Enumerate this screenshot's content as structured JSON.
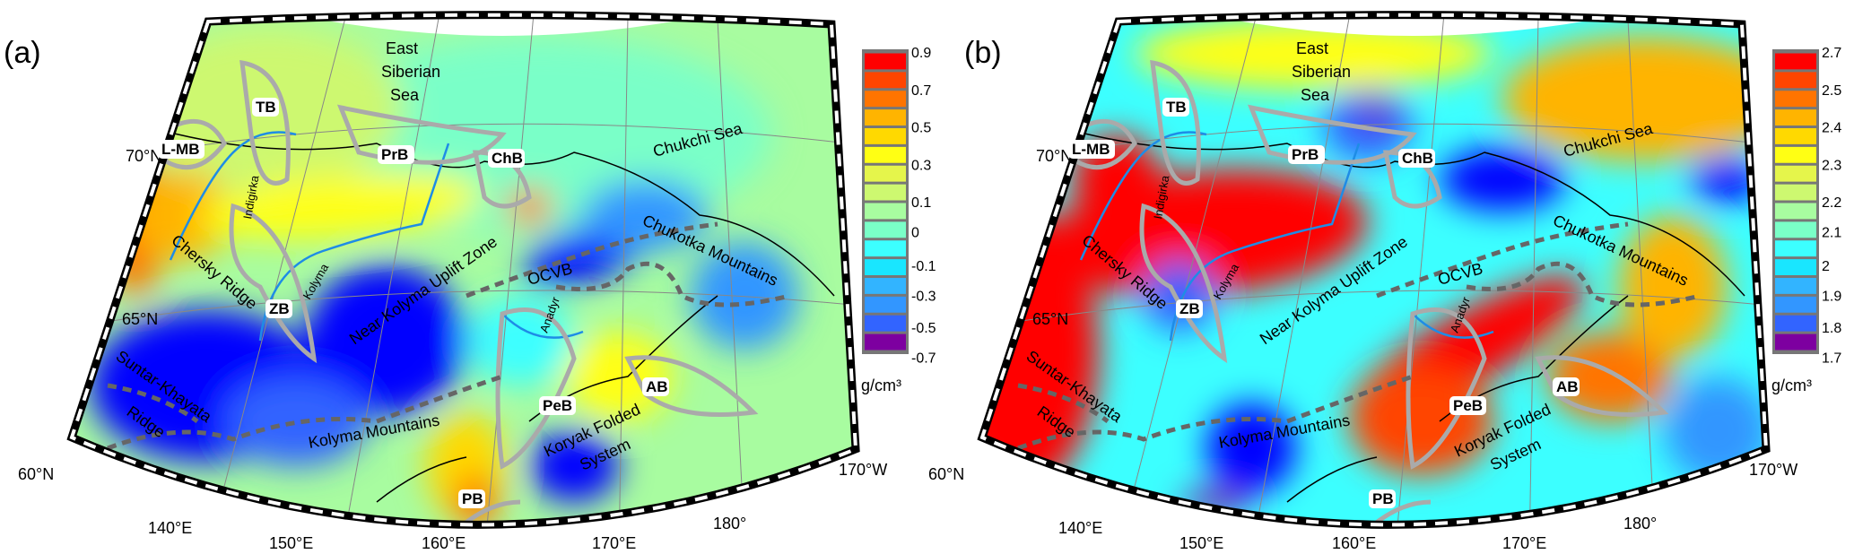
{
  "colorbar_colors": [
    "#ff0000",
    "#ff4500",
    "#ff7400",
    "#ffb400",
    "#ffd900",
    "#ffff14",
    "#e5f54b",
    "#cdf870",
    "#a8fca0",
    "#7affc8",
    "#3cffff",
    "#19e6ff",
    "#32b4ff",
    "#3296ff",
    "#3264ff",
    "#0000ff",
    "#7d00a0"
  ],
  "unit": "g/cm³",
  "panels": [
    {
      "label": "(a)",
      "colorbar_ticks": [
        "0.9",
        "0.7",
        "0.5",
        "0.3",
        "0.1",
        "0",
        "-0.1",
        "-0.3",
        "-0.5",
        "-0.7"
      ]
    },
    {
      "label": "(b)",
      "colorbar_ticks": [
        "2.7",
        "2.5",
        "2.4",
        "2.3",
        "2.2",
        "2.1",
        "2",
        "1.9",
        "1.8",
        "1.7"
      ]
    }
  ],
  "lat_labels": [
    "70°N",
    "65°N",
    "60°N"
  ],
  "lon_labels": [
    "140°E",
    "150°E",
    "160°E",
    "170°E",
    "180°",
    "170°W"
  ],
  "basins": [
    "L-MB",
    "TB",
    "PrB",
    "ChB",
    "ZB",
    "PeB",
    "AB",
    "PB"
  ],
  "regions": {
    "sea1": [
      "East",
      "Siberian",
      "Sea"
    ],
    "chukchi_sea": "Chukchi Sea",
    "chukotka": "Chukotka Mountains",
    "ocvb": "OCVB",
    "chersky": "Chersky Ridge",
    "suntar": [
      "Suntar-Khayata",
      "Ridge"
    ],
    "near_kolyma": "Near Kolyma Uplift Zone",
    "kolyma_mtn": "Kolyma Mountains",
    "koryak": [
      "Koryak Folded",
      "System"
    ],
    "indigirka": "Indigirka",
    "kolyma": "Kolyma",
    "anadyr": "Anadyr"
  }
}
